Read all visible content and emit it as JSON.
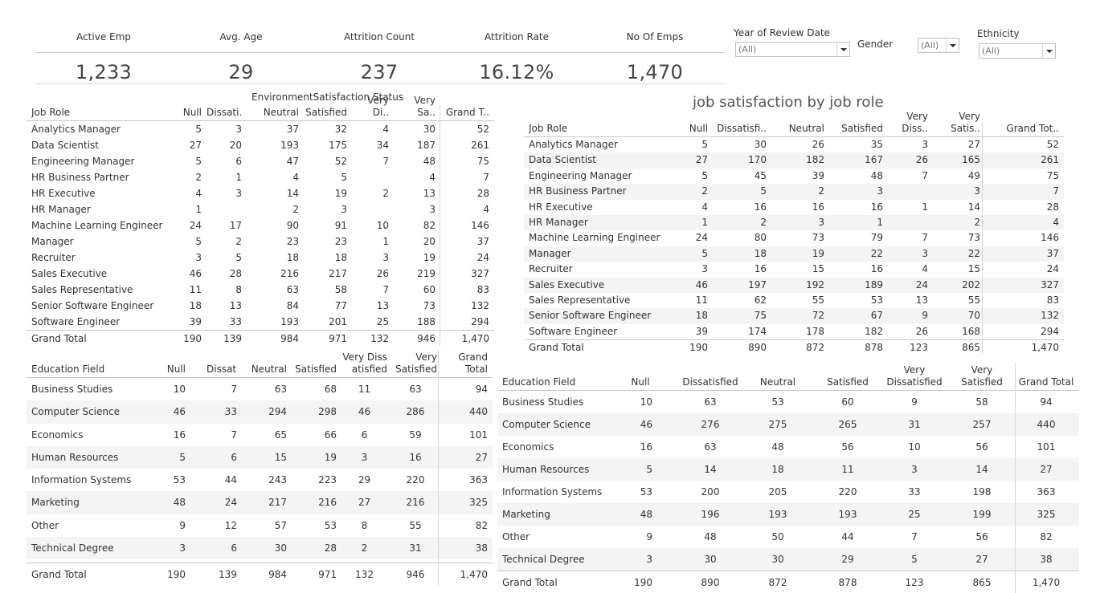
{
  "kpis": [
    {
      "label": "Active Emp",
      "value": "1,233"
    },
    {
      "label": "Avg. Age",
      "value": "29"
    },
    {
      "label": "Attrition Count",
      "value": "237"
    },
    {
      "label": "Attrition Rate",
      "value": "16.12%"
    },
    {
      "label": "No Of Emps",
      "value": "1,470"
    }
  ],
  "filters": {
    "year": {
      "label": "Year of Review Date",
      "value": "(All)"
    },
    "gender": {
      "label": "Gender",
      "value": "(All)"
    },
    "ethnicity": {
      "label": "Ethnicity",
      "value": "(All)"
    }
  },
  "env_role": {
    "caption": "EnvironmentSatisfaction Status",
    "headers": [
      "Job Role",
      "Null",
      "Dissati..",
      "Neutral",
      "Satisfied",
      "Very Di..",
      "Very Sa..",
      "Grand T.."
    ],
    "rows": [
      [
        "Analytics Manager",
        "5",
        "3",
        "37",
        "32",
        "4",
        "30",
        "52"
      ],
      [
        "Data Scientist",
        "27",
        "20",
        "193",
        "175",
        "34",
        "187",
        "261"
      ],
      [
        "Engineering Manager",
        "5",
        "6",
        "47",
        "52",
        "7",
        "48",
        "75"
      ],
      [
        "HR Business Partner",
        "2",
        "1",
        "4",
        "5",
        "",
        "4",
        "7"
      ],
      [
        "HR Executive",
        "4",
        "3",
        "14",
        "19",
        "2",
        "13",
        "28"
      ],
      [
        "HR Manager",
        "1",
        "",
        "2",
        "3",
        "",
        "3",
        "4"
      ],
      [
        "Machine Learning Engineer",
        "24",
        "17",
        "90",
        "91",
        "10",
        "82",
        "146"
      ],
      [
        "Manager",
        "5",
        "2",
        "23",
        "23",
        "1",
        "20",
        "37"
      ],
      [
        "Recruiter",
        "3",
        "5",
        "18",
        "18",
        "3",
        "19",
        "24"
      ],
      [
        "Sales Executive",
        "46",
        "28",
        "216",
        "217",
        "26",
        "219",
        "327"
      ],
      [
        "Sales Representative",
        "11",
        "8",
        "63",
        "58",
        "7",
        "60",
        "83"
      ],
      [
        "Senior Software Engineer",
        "18",
        "13",
        "84",
        "77",
        "13",
        "73",
        "132"
      ],
      [
        "Software Engineer",
        "39",
        "33",
        "193",
        "201",
        "25",
        "188",
        "294"
      ]
    ],
    "total": [
      "Grand Total",
      "190",
      "139",
      "984",
      "971",
      "132",
      "946",
      "1,470"
    ]
  },
  "job_role": {
    "title": "job satisfaction by job role",
    "headers": [
      "Job Role",
      "Null",
      "Dissatisfi..",
      "Neutral",
      "Satisfied",
      "Very Diss..",
      "Very Satis..",
      "Grand Tot.."
    ],
    "rows": [
      [
        "Analytics Manager",
        "5",
        "30",
        "26",
        "35",
        "3",
        "27",
        "52"
      ],
      [
        "Data Scientist",
        "27",
        "170",
        "182",
        "167",
        "26",
        "165",
        "261"
      ],
      [
        "Engineering Manager",
        "5",
        "45",
        "39",
        "48",
        "7",
        "49",
        "75"
      ],
      [
        "HR Business Partner",
        "2",
        "5",
        "2",
        "3",
        "",
        "3",
        "7"
      ],
      [
        "HR Executive",
        "4",
        "16",
        "16",
        "16",
        "1",
        "14",
        "28"
      ],
      [
        "HR Manager",
        "1",
        "2",
        "3",
        "1",
        "",
        "2",
        "4"
      ],
      [
        "Machine Learning Engineer",
        "24",
        "80",
        "73",
        "79",
        "7",
        "73",
        "146"
      ],
      [
        "Manager",
        "5",
        "18",
        "19",
        "22",
        "3",
        "22",
        "37"
      ],
      [
        "Recruiter",
        "3",
        "16",
        "15",
        "16",
        "4",
        "15",
        "24"
      ],
      [
        "Sales Executive",
        "46",
        "197",
        "192",
        "189",
        "24",
        "202",
        "327"
      ],
      [
        "Sales Representative",
        "11",
        "62",
        "55",
        "53",
        "13",
        "55",
        "83"
      ],
      [
        "Senior Software Engineer",
        "18",
        "75",
        "72",
        "67",
        "9",
        "70",
        "132"
      ],
      [
        "Software Engineer",
        "39",
        "174",
        "178",
        "182",
        "26",
        "168",
        "294"
      ]
    ],
    "total": [
      "Grand Total",
      "190",
      "890",
      "872",
      "878",
      "123",
      "865",
      "1,470"
    ]
  },
  "env_edu": {
    "headers": [
      "Education Field",
      "Null",
      "Dissatis..",
      "Neutral",
      "Satisfied",
      "Very Diss\natisfied",
      "Very\nSatisfied",
      "Grand\nTotal"
    ],
    "rows": [
      [
        "Business Studies",
        "10",
        "7",
        "63",
        "68",
        "11",
        "63",
        "94"
      ],
      [
        "Computer Science",
        "46",
        "33",
        "294",
        "298",
        "46",
        "286",
        "440"
      ],
      [
        "Economics",
        "16",
        "7",
        "65",
        "66",
        "6",
        "59",
        "101"
      ],
      [
        "Human Resources",
        "5",
        "6",
        "15",
        "19",
        "3",
        "16",
        "27"
      ],
      [
        "Information Systems",
        "53",
        "44",
        "243",
        "223",
        "29",
        "220",
        "363"
      ],
      [
        "Marketing",
        "48",
        "24",
        "217",
        "216",
        "27",
        "216",
        "325"
      ],
      [
        "Other",
        "9",
        "12",
        "57",
        "53",
        "8",
        "55",
        "82"
      ],
      [
        "Technical Degree",
        "3",
        "6",
        "30",
        "28",
        "2",
        "31",
        "38"
      ]
    ],
    "total": [
      "Grand Total",
      "190",
      "139",
      "984",
      "971",
      "132",
      "946",
      "1,470"
    ]
  },
  "job_edu": {
    "headers": [
      "Education Field",
      "Null",
      "Dissatisfied",
      "Neutral",
      "Satisfied",
      "Very\nDissatisfied",
      "Very\nSatisfied",
      "Grand Total"
    ],
    "rows": [
      [
        "Business Studies",
        "10",
        "63",
        "53",
        "60",
        "9",
        "58",
        "94"
      ],
      [
        "Computer Science",
        "46",
        "276",
        "275",
        "265",
        "31",
        "257",
        "440"
      ],
      [
        "Economics",
        "16",
        "63",
        "48",
        "56",
        "10",
        "56",
        "101"
      ],
      [
        "Human Resources",
        "5",
        "14",
        "18",
        "11",
        "3",
        "14",
        "27"
      ],
      [
        "Information Systems",
        "53",
        "200",
        "205",
        "220",
        "33",
        "198",
        "363"
      ],
      [
        "Marketing",
        "48",
        "196",
        "193",
        "193",
        "25",
        "199",
        "325"
      ],
      [
        "Other",
        "9",
        "48",
        "50",
        "44",
        "7",
        "56",
        "82"
      ],
      [
        "Technical Degree",
        "3",
        "30",
        "30",
        "29",
        "5",
        "27",
        "38"
      ]
    ],
    "total": [
      "Grand Total",
      "190",
      "890",
      "872",
      "878",
      "123",
      "865",
      "1,470"
    ]
  }
}
